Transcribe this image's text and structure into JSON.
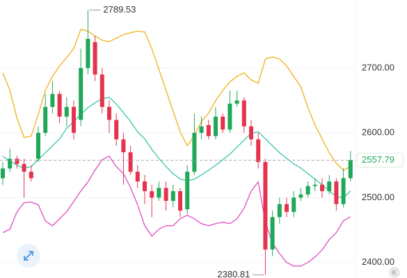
{
  "chart_data": {
    "type": "candlestick",
    "ylim": [
      2376,
      2805
    ],
    "yticks": [
      {
        "value": 2400,
        "label": "2400.00"
      },
      {
        "value": 2500,
        "label": "2500.00"
      },
      {
        "value": 2600,
        "label": "2600.00"
      },
      {
        "value": 2700,
        "label": "2700.00"
      }
    ],
    "grid": true,
    "colors": {
      "up": "#1fa857",
      "down": "#e5334d"
    },
    "ohlc": {
      "open": [
        2530,
        2545,
        2560,
        2552,
        2540,
        2560,
        2600,
        2640,
        2660,
        2625,
        2640,
        2620,
        2700,
        2740,
        2690,
        2640,
        2620,
        2590,
        2570,
        2540,
        2525,
        2510,
        2500,
        2515,
        2495,
        2510,
        2482,
        2540,
        2600,
        2612,
        2595,
        2625,
        2605,
        2645,
        2650,
        2610,
        2590,
        2555,
        2420,
        2470,
        2490,
        2478,
        2500,
        2505,
        2518,
        2520,
        2510,
        2525,
        2490,
        2530
      ],
      "high": [
        2555,
        2575,
        2565,
        2560,
        2550,
        2610,
        2660,
        2680,
        2665,
        2655,
        2650,
        2730,
        2789.53,
        2750,
        2700,
        2650,
        2630,
        2600,
        2580,
        2550,
        2535,
        2520,
        2525,
        2525,
        2520,
        2515,
        2550,
        2630,
        2625,
        2620,
        2640,
        2630,
        2665,
        2665,
        2655,
        2620,
        2600,
        2560,
        2480,
        2500,
        2500,
        2510,
        2515,
        2525,
        2530,
        2530,
        2535,
        2530,
        2545,
        2572
      ],
      "low": [
        2520,
        2540,
        2545,
        2500,
        2525,
        2555,
        2595,
        2630,
        2615,
        2610,
        2590,
        2610,
        2690,
        2680,
        2630,
        2600,
        2580,
        2520,
        2535,
        2515,
        2490,
        2470,
        2495,
        2480,
        2485,
        2470,
        2475,
        2535,
        2590,
        2590,
        2590,
        2600,
        2600,
        2640,
        2600,
        2580,
        2545,
        2380.81,
        2410,
        2460,
        2470,
        2470,
        2495,
        2500,
        2510,
        2500,
        2505,
        2480,
        2485,
        2525
      ],
      "close": [
        2545,
        2560,
        2552,
        2540,
        2530,
        2600,
        2640,
        2660,
        2625,
        2640,
        2600,
        2700,
        2745,
        2690,
        2640,
        2620,
        2590,
        2570,
        2540,
        2525,
        2510,
        2500,
        2515,
        2495,
        2510,
        2480,
        2540,
        2600,
        2610,
        2595,
        2625,
        2605,
        2645,
        2650,
        2610,
        2590,
        2555,
        2420,
        2470,
        2490,
        2478,
        2500,
        2505,
        2518,
        2520,
        2510,
        2525,
        2490,
        2530,
        2557.79
      ]
    },
    "overlays": [
      {
        "color": "#f2b526",
        "values": [
          2692.5,
          2665.7,
          2622.8,
          2592.8,
          2595,
          2628.2,
          2665.7,
          2687.1,
          2703.2,
          2716.1,
          2730,
          2760,
          2756.8,
          2749.3,
          2742.9,
          2740.7,
          2746.1,
          2751.4,
          2754.7,
          2756.8,
          2755.7,
          2730,
          2697.9,
          2665.7,
          2633.5,
          2601.4,
          2580,
          2596,
          2617.5,
          2630.3,
          2649.6,
          2665.7,
          2678.6,
          2687.1,
          2692.5,
          2681.8,
          2676.4,
          2713.9,
          2717.1,
          2713.9,
          2703.2,
          2687.1,
          2671.1,
          2638.9,
          2612.1,
          2590.7,
          2569.3,
          2553.2,
          2542.4,
          2547.8
        ]
      },
      {
        "color": "#45c9b4",
        "values": [
          2563.9,
          2556.4,
          2550,
          2545.7,
          2547.8,
          2558.5,
          2569.3,
          2580,
          2590.7,
          2606.8,
          2617.5,
          2628.2,
          2639,
          2646.4,
          2652.8,
          2655,
          2644.3,
          2631.4,
          2617.5,
          2601.4,
          2590.7,
          2574.6,
          2560.7,
          2547.8,
          2537.1,
          2528.5,
          2526.4,
          2528.5,
          2535,
          2542.4,
          2550,
          2558.5,
          2567,
          2577.8,
          2588.5,
          2599.3,
          2601.4,
          2590.7,
          2580,
          2569.3,
          2560.7,
          2552.1,
          2545.7,
          2537.1,
          2528.5,
          2520,
          2510.3,
          2501.7,
          2499.6,
          2510.3
        ]
      },
      {
        "color": "#e356c6",
        "values": [
          2446,
          2451.3,
          2478.1,
          2492.1,
          2493.1,
          2488.9,
          2464.2,
          2456.7,
          2467.4,
          2478.1,
          2494.2,
          2510.3,
          2524.2,
          2542.4,
          2558.5,
          2563.9,
          2547.8,
          2537.1,
          2515.6,
          2488.9,
          2456.7,
          2440.6,
          2451.3,
          2456.7,
          2456.7,
          2467.4,
          2472.8,
          2467.4,
          2459.9,
          2456.7,
          2459.9,
          2462.1,
          2459.9,
          2467.4,
          2483.5,
          2510.3,
          2524.2,
          2462.1,
          2429.9,
          2413.8,
          2399.9,
          2394.5,
          2394.5,
          2399.9,
          2408.5,
          2419.2,
          2435.3,
          2446,
          2464.2,
          2470.6
        ]
      }
    ],
    "high_marker": 2789.53,
    "low_marker": 2380.81,
    "last_price": 2557.79,
    "watermark": "K"
  }
}
